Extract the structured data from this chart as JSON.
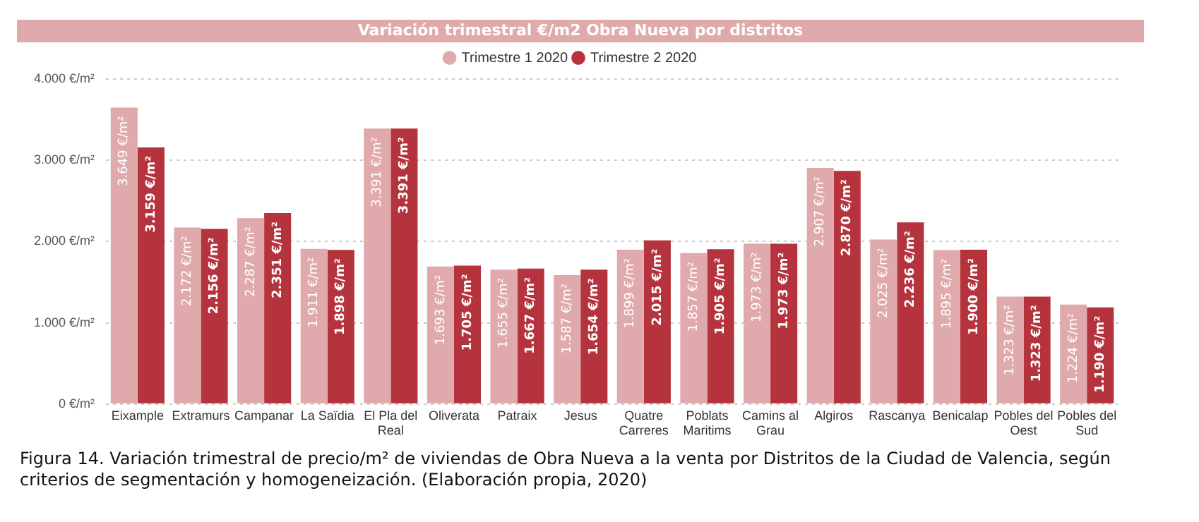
{
  "chart_data": {
    "type": "bar",
    "title": "Variación trimestral €/m2 Obra Nueva por distritos",
    "categories": [
      "Eixample",
      "Extramurs",
      "Campanar",
      "La Saïdia",
      "El Pla del Real",
      "Oliverata",
      "Patraix",
      "Jesus",
      "Quatre Carreres",
      "Poblats Maritims",
      "Camins al Grau",
      "Algiros",
      "Rascanya",
      "Benicalap",
      "Pobles del Oest",
      "Pobles del Sud"
    ],
    "series": [
      {
        "name": "Trimestre 1 2020",
        "color": "#e0aaad",
        "values": [
          3649,
          2172,
          2287,
          1911,
          3391,
          1693,
          1655,
          1587,
          1899,
          1857,
          1973,
          2907,
          2025,
          1895,
          1323,
          1224
        ],
        "value_labels": [
          "3.649 €/m²",
          "2.172 €/m²",
          "2.287 €/m²",
          "1.911 €/m²",
          "3.391 €/m²",
          "1.693 €/m²",
          "1.655 €/m²",
          "1.587 €/m²",
          "1.899 €/m²",
          "1.857 €/m²",
          "1.973 €/m²",
          "2.907 €/m²",
          "2.025 €/m²",
          "1.895 €/m²",
          "1.323 €/m²",
          "1.224 €/m²"
        ]
      },
      {
        "name": "Trimestre 2 2020",
        "color": "#b5333c",
        "values": [
          3159,
          2156,
          2351,
          1898,
          3391,
          1705,
          1667,
          1654,
          2015,
          1905,
          1973,
          2870,
          2236,
          1900,
          1323,
          1190
        ],
        "value_labels": [
          "3.159 €/m²",
          "2.156 €/m²",
          "2.351 €/m²",
          "1.898 €/m²",
          "3.391 €/m²",
          "1.705 €/m²",
          "1.667 €/m²",
          "1.654 €/m²",
          "2.015 €/m²",
          "1.905 €/m²",
          "1.973 €/m²",
          "2.870 €/m²",
          "2.236 €/m²",
          "1.900 €/m²",
          "1.323 €/m²",
          "1.190 €/m²"
        ]
      }
    ],
    "ylim": [
      0,
      4000
    ],
    "yticks": [
      {
        "value": 0,
        "label": "0 €/m²"
      },
      {
        "value": 1000,
        "label": "1.000 €/m²"
      },
      {
        "value": 2000,
        "label": "2.000 €/m²"
      },
      {
        "value": 3000,
        "label": "3.000 €/m²"
      },
      {
        "value": 4000,
        "label": "4.000 €/m²"
      }
    ],
    "grid": "y",
    "legend": "top",
    "annotations": [
      "Figura 14. Variación trimestral de precio/m² de viviendas de Obra Nueva a la venta por Distritos de la Ciudad de Valencia, según criterios de segmentación y homogeneización. (Elaboración propia, 2020)"
    ]
  }
}
